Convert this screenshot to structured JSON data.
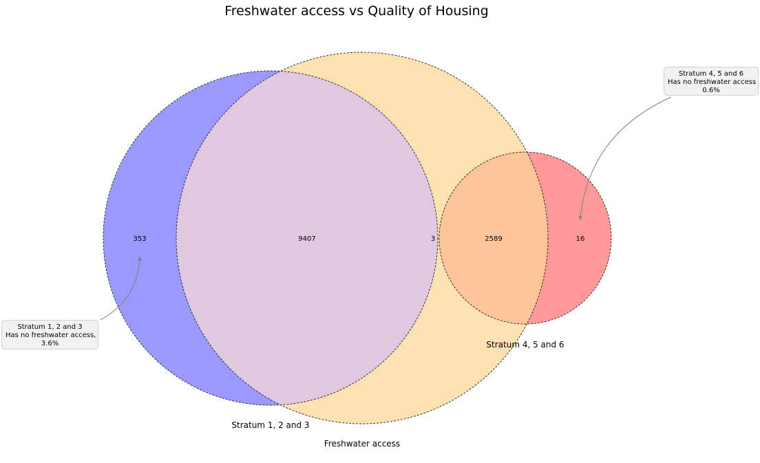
{
  "title": "Freshwater access vs Quality of Housing",
  "sets": {
    "stratum_123": {
      "label": "Stratum 1, 2 and 3",
      "color": "#9999ff"
    },
    "freshwater": {
      "label": "Freshwater access",
      "color": "#fde1b0"
    },
    "stratum_456": {
      "label": "Stratum 4, 5 and 6",
      "color": "#ff9898"
    }
  },
  "overlap_colors": {
    "stratum123_freshwater": "#e0c8e0",
    "freshwater_stratum456": "#fec49a"
  },
  "region_values": {
    "stratum123_only": "353",
    "stratum123_and_freshwater": "9407",
    "freshwater_only": "3",
    "freshwater_and_stratum456": "2589",
    "stratum456_only": "16"
  },
  "annotations": {
    "left": {
      "line1": "Stratum 1, 2 and 3",
      "line2": "Has no freshwater access,",
      "line3": "3.6%"
    },
    "right": {
      "line1": "Stratum 4, 5 and 6",
      "line2": "Has no freshwater access",
      "line3": "0.6%"
    }
  }
}
